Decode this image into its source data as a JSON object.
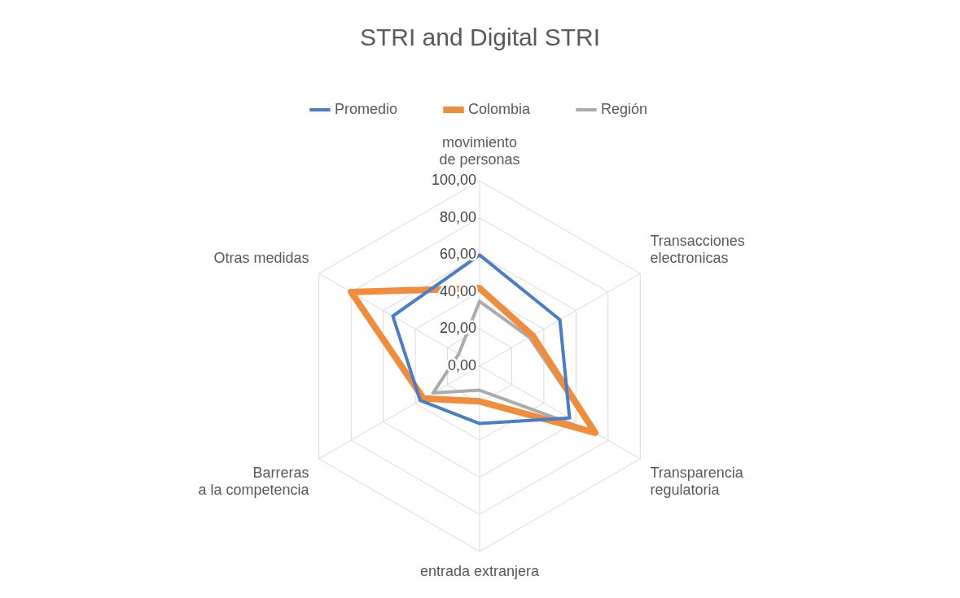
{
  "chart_data": {
    "type": "radar",
    "title": "STRI and Digital STRI",
    "categories": [
      "movimiento de personas",
      "Transacciones electronicas",
      "Transparencia regulatoria",
      "entrada extranjera",
      "Barreras a la competencia",
      "Otras medidas"
    ],
    "series": [
      {
        "name": "Promedio",
        "color": "#4a7ccc",
        "values": [
          60,
          50,
          56,
          31,
          37,
          54
        ]
      },
      {
        "name": "Colombia",
        "color": "#f08c3a",
        "values": [
          42,
          33,
          72,
          19,
          35,
          80
        ]
      },
      {
        "name": "Región",
        "color": "#ababab",
        "values": [
          35,
          31,
          71,
          13,
          29,
          13
        ]
      }
    ],
    "ylim": [
      0,
      100
    ],
    "yticks": [
      {
        "value": 0,
        "label": "0,00"
      },
      {
        "value": 20,
        "label": "20,00"
      },
      {
        "value": 40,
        "label": "40,00"
      },
      {
        "value": 60,
        "label": "60,00"
      },
      {
        "value": 80,
        "label": "80,00"
      },
      {
        "value": 100,
        "label": "100,00"
      }
    ],
    "grid": true,
    "legend": "top",
    "marker": "none",
    "line_style": "solid"
  }
}
